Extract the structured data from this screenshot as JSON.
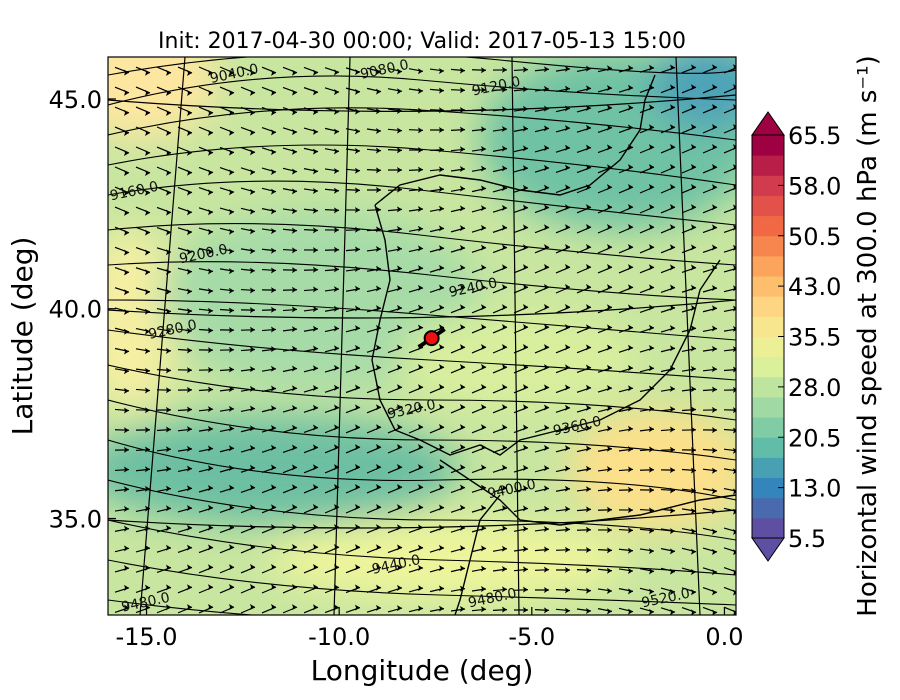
{
  "title": "Init: 2017-04-30 00:00; Valid: 2017-05-13 15:00",
  "map": {
    "xlabel": "Longitude (deg)",
    "ylabel": "Latitude (deg)",
    "xlim": [
      -16.0,
      0.3
    ],
    "ylim": [
      32.7,
      46.0
    ],
    "xticks": [
      "-15.0",
      "-10.0",
      "-5.0",
      "0.0"
    ],
    "xtick_values": [
      -15,
      -10,
      -5,
      0
    ],
    "yticks": [
      "45.0",
      "40.0",
      "35.0"
    ],
    "ytick_values": [
      45,
      40,
      35
    ],
    "marker": {
      "lon": -7.6,
      "lat": 39.3,
      "color": "#ee1111"
    },
    "field_colors": {
      "slow": "#3a8fbf",
      "mid": "#8fd0a4",
      "fast": "#fee08b",
      "strong": "#fdae61"
    }
  },
  "colorbar": {
    "label": "Horizontal wind speed at 300.0 hPa (m s⁻¹)",
    "tick_labels": [
      "65.5",
      "58.0",
      "50.5",
      "43.0",
      "35.5",
      "28.0",
      "20.5",
      "13.0",
      "5.5"
    ],
    "range": [
      5.5,
      65.5
    ],
    "colors": [
      "#5e4fa2",
      "#3288bd",
      "#66c2a5",
      "#abdda4",
      "#e6f598",
      "#fee08b",
      "#fdae61",
      "#f46d43",
      "#d53e4f",
      "#9e0142"
    ]
  },
  "chart_data": {
    "type": "heatmap",
    "title": "Init: 2017-04-30 00:00; Valid: 2017-05-13 15:00",
    "xlabel": "Longitude (deg)",
    "ylabel": "Latitude (deg)",
    "field": "Horizontal wind speed at 300.0 hPa",
    "contours": [
      {
        "label": "9040.0",
        "lon": -12.7,
        "lat": 45.5
      },
      {
        "label": "9080.0",
        "lon": -8.8,
        "lat": 45.6
      },
      {
        "label": "9120.0",
        "lon": -5.9,
        "lat": 45.2
      },
      {
        "label": "9160.0",
        "lon": -15.3,
        "lat": 42.7
      },
      {
        "label": "9200.0",
        "lon": -13.5,
        "lat": 41.2
      },
      {
        "label": "9240.0",
        "lon": -6.5,
        "lat": 40.4
      },
      {
        "label": "9280.0",
        "lon": -14.3,
        "lat": 39.4
      },
      {
        "label": "9320.0",
        "lon": -8.1,
        "lat": 37.5
      },
      {
        "label": "9360.0",
        "lon": -3.8,
        "lat": 37.1
      },
      {
        "label": "9400.0",
        "lon": -5.5,
        "lat": 35.6
      },
      {
        "label": "9440.0",
        "lon": -8.5,
        "lat": 33.8
      },
      {
        "label": "9480.0",
        "lon": -15.0,
        "lat": 32.9
      },
      {
        "label": "9480.0",
        "lon": -6.0,
        "lat": 33.0
      },
      {
        "label": "9520.0",
        "lon": -1.5,
        "lat": 33.0
      }
    ]
  }
}
